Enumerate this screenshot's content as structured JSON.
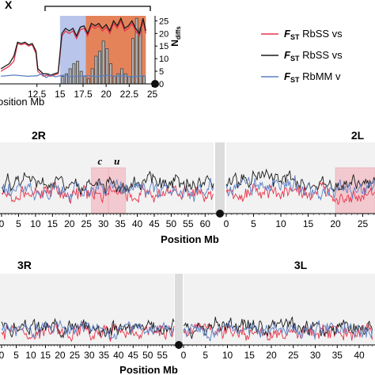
{
  "chart_data": [
    {
      "type": "line",
      "panel": "X",
      "title": "X",
      "xlabel": "osition Mb",
      "ylabel": "Ndiffs",
      "ylabel_main": "N",
      "ylabel_sub": "diffs",
      "xticks": [
        "12.5",
        "15",
        "17.5",
        "20",
        "22.5",
        "25"
      ],
      "xlim": [
        8.5,
        25.3
      ],
      "yticks_right": [
        "0",
        "5",
        "10",
        "15",
        "20",
        "25"
      ],
      "ylim_right": [
        0,
        27
      ],
      "regions": [
        {
          "start": 15.0,
          "end": 17.8,
          "color": "#b9c5ea"
        },
        {
          "start": 17.8,
          "end": 24.3,
          "color": "#e4835a"
        }
      ],
      "bars": {
        "name": "Ndiffs",
        "x": [
          15.3,
          15.7,
          16.1,
          16.5,
          16.9,
          17.3,
          17.7,
          18.1,
          18.5,
          18.9,
          19.3,
          19.7,
          20.1,
          20.5,
          20.9,
          21.3,
          21.7,
          22.1,
          22.5,
          22.9,
          23.3,
          23.7,
          24.1
        ],
        "values": [
          3,
          4,
          6,
          8,
          9,
          5,
          3,
          2,
          6,
          11,
          13,
          17,
          14,
          8,
          3,
          4,
          6,
          4,
          3,
          18,
          26,
          22,
          3
        ]
      },
      "series": [
        {
          "x": [
            8.6,
            9.5,
            10.0,
            10.4,
            10.8,
            11.2,
            11.6,
            12.0,
            12.4,
            12.6,
            12.9,
            13.2,
            13.6,
            14.0,
            14.4,
            14.8,
            15.2,
            15.6,
            16.0,
            16.4,
            16.8,
            17.2,
            17.6,
            18.0,
            18.4,
            18.8,
            19.2,
            19.6,
            20.0,
            20.4,
            20.8,
            21.2,
            21.6,
            22.0,
            22.4,
            22.8,
            23.2,
            23.6,
            24.0,
            24.3
          ],
          "y": [
            5,
            7,
            9,
            16,
            15.5,
            16,
            15,
            15.5,
            12,
            5,
            4,
            3,
            3.5,
            3,
            3.5,
            4,
            19,
            21,
            20,
            21,
            18,
            21.5,
            22,
            19,
            23,
            22,
            23,
            21,
            22.5,
            20,
            24,
            22,
            25,
            21,
            22,
            24,
            21,
            19,
            25,
            20
          ],
          "color": "#e8344a"
        },
        {
          "x": [
            8.6,
            9.5,
            10.0,
            10.4,
            10.8,
            11.2,
            11.6,
            12.0,
            12.4,
            12.6,
            12.9,
            13.2,
            13.6,
            14.0,
            14.4,
            14.8,
            15.2,
            15.6,
            16.0,
            16.4,
            16.8,
            17.2,
            17.6,
            18.0,
            18.4,
            18.8,
            19.2,
            19.6,
            20.0,
            20.4,
            20.8,
            21.2,
            21.6,
            22.0,
            22.4,
            22.8,
            23.2,
            23.6,
            24.0,
            24.3
          ],
          "y": [
            6,
            8,
            11,
            16.5,
            16,
            16.5,
            15.5,
            16,
            13,
            6,
            5,
            4,
            4,
            3.5,
            4,
            4.5,
            20,
            22,
            21,
            22,
            19,
            22.5,
            23,
            20,
            24,
            23,
            24,
            22,
            23.5,
            21,
            25,
            23,
            26,
            22,
            23,
            25,
            22,
            20,
            26,
            21
          ],
          "color": "#1a1a1a"
        },
        {
          "x": [
            8.6,
            10.0,
            11.5,
            12.5,
            13.0,
            13.5,
            14.0,
            14.5,
            15.0,
            15.5,
            16.0,
            17.0,
            18.0,
            19.0,
            20.0,
            21.0,
            22.0,
            23.0,
            24.0,
            24.3
          ],
          "y": [
            3,
            3.5,
            3,
            3.2,
            4,
            2.5,
            3.5,
            2.8,
            3.2,
            3.5,
            2.8,
            3.0,
            3.2,
            2.9,
            3.4,
            3.0,
            3.1,
            2.8,
            3.2,
            3.0
          ],
          "color": "#5b7fc4"
        }
      ]
    },
    {
      "type": "line",
      "panel": "2R / 2L",
      "left_label": "2R",
      "right_label": "2L",
      "xlabel": "Position Mb",
      "xticks_left": [
        "0",
        "5",
        "10",
        "15",
        "20",
        "25",
        "30",
        "35",
        "40",
        "45",
        "50",
        "55",
        "60"
      ],
      "xticks_right": [
        "0",
        "5",
        "10",
        "15",
        "20",
        "25"
      ],
      "xlim_left": [
        0,
        62.5
      ],
      "xlim_right": [
        0,
        28
      ],
      "regions": [
        {
          "arm": "2R",
          "start": 26.5,
          "end": 31.5,
          "label": "c"
        },
        {
          "arm": "2R",
          "start": 31.5,
          "end": 36.5,
          "label": "u"
        },
        {
          "arm": "2L",
          "start": 20.0,
          "end": 28.0,
          "label": ""
        }
      ],
      "series": [
        {
          "color": "#e8344a",
          "level": 0.28
        },
        {
          "color": "#1a1a1a",
          "level": 0.42
        },
        {
          "color": "#5b7fc4",
          "level": 0.33
        }
      ]
    },
    {
      "type": "line",
      "panel": "3R / 3L",
      "left_label": "3R",
      "right_label": "3L",
      "xlabel": "Position Mb",
      "xticks_left": [
        "0",
        "5",
        "10",
        "15",
        "20",
        "25",
        "30",
        "35",
        "40",
        "45",
        "50",
        "55"
      ],
      "xticks_right": [
        "0",
        "5",
        "10",
        "15",
        "20",
        "25",
        "30",
        "35",
        "40"
      ],
      "xlim_left": [
        0,
        59
      ],
      "xlim_right": [
        0,
        43
      ],
      "series": [
        {
          "color": "#e8344a",
          "level": 0.18
        },
        {
          "color": "#1a1a1a",
          "level": 0.25
        },
        {
          "color": "#5b7fc4",
          "level": 0.21
        }
      ]
    }
  ],
  "legend": [
    {
      "prefix": "F",
      "sub": "ST",
      "text": " RbSS vs",
      "color": "#e8344a"
    },
    {
      "prefix": "F",
      "sub": "ST",
      "text": " RbSS vs",
      "color": "#1a1a1a"
    },
    {
      "prefix": "F",
      "sub": "ST",
      "text": " RbMM v",
      "color": "#5b7fc4"
    }
  ]
}
